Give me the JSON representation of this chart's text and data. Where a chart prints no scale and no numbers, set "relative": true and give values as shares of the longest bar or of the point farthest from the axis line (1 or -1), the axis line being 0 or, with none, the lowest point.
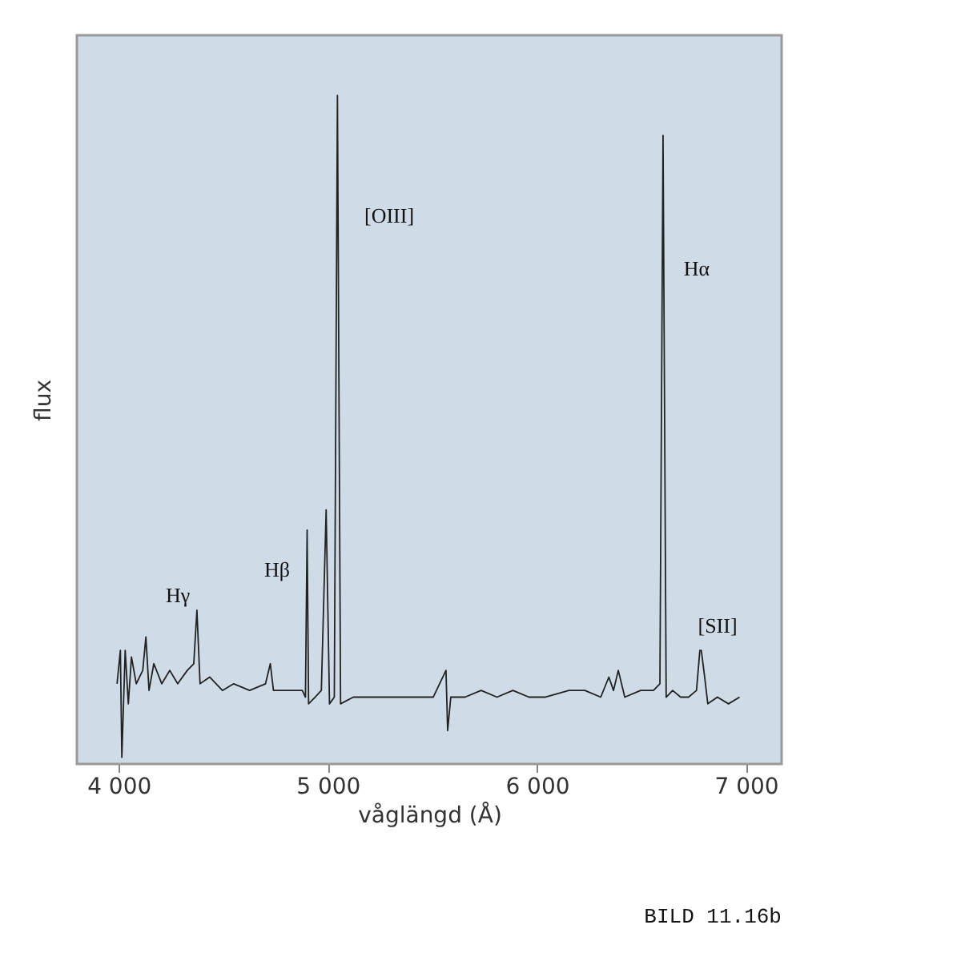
{
  "chart_data": {
    "type": "line",
    "relative": true,
    "xlabel": "våglängd (Å)",
    "ylabel": "flux",
    "xlim": [
      3800,
      7170
    ],
    "xticks": [
      {
        "value": 4000,
        "label": "4 000"
      },
      {
        "value": 5000,
        "label": "5 000"
      },
      {
        "value": 6000,
        "label": "6 000"
      },
      {
        "value": 7000,
        "label": "7 000"
      }
    ],
    "grid": false,
    "series": [
      {
        "color": "#222222",
        "x": [
          3992,
          4008,
          4015,
          4031,
          4046,
          4061,
          4084,
          4115,
          4130,
          4145,
          4168,
          4206,
          4244,
          4282,
          4328,
          4359,
          4374,
          4389,
          4435,
          4496,
          4550,
          4626,
          4702,
          4725,
          4740,
          4817,
          4878,
          4893,
          4901,
          4908,
          4939,
          4969,
          4992,
          5008,
          5031,
          5046,
          5061,
          5122,
          5198,
          5275,
          5351,
          5427,
          5504,
          5565,
          5573,
          5588,
          5656,
          5733,
          5809,
          5885,
          5962,
          6038,
          6153,
          6229,
          6305,
          6344,
          6366,
          6389,
          6420,
          6496,
          6557,
          6588,
          6603,
          6618,
          6649,
          6687,
          6725,
          6763,
          6779,
          6786,
          6802,
          6817,
          6863,
          6916,
          6969
        ],
        "values": [
          0.12,
          0.17,
          0.01,
          0.17,
          0.09,
          0.16,
          0.12,
          0.14,
          0.19,
          0.11,
          0.15,
          0.12,
          0.14,
          0.12,
          0.14,
          0.15,
          0.23,
          0.12,
          0.13,
          0.11,
          0.12,
          0.11,
          0.12,
          0.15,
          0.11,
          0.11,
          0.11,
          0.1,
          0.35,
          0.09,
          0.1,
          0.11,
          0.38,
          0.09,
          0.1,
          1.0,
          0.09,
          0.1,
          0.1,
          0.1,
          0.1,
          0.1,
          0.1,
          0.14,
          0.05,
          0.1,
          0.1,
          0.11,
          0.1,
          0.11,
          0.1,
          0.1,
          0.11,
          0.11,
          0.1,
          0.13,
          0.11,
          0.14,
          0.1,
          0.11,
          0.11,
          0.12,
          0.94,
          0.1,
          0.11,
          0.1,
          0.1,
          0.11,
          0.17,
          0.17,
          0.13,
          0.09,
          0.1,
          0.09,
          0.1
        ]
      }
    ],
    "annotations": [
      "Hγ",
      "Hβ",
      "[OIII]",
      "Hα",
      "[SII]",
      "BILD 11.16b"
    ]
  }
}
